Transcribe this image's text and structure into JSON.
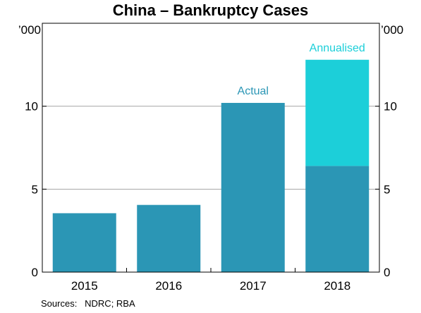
{
  "chart_data": {
    "type": "bar",
    "title": "China – Bankruptcy Cases",
    "categories": [
      "2015",
      "2016",
      "2017",
      "2018"
    ],
    "series": [
      {
        "name": "Actual",
        "values": [
          3.55,
          4.05,
          10.2,
          6.4
        ],
        "color": "#2b96b5"
      },
      {
        "name": "Annualised",
        "values": [
          0,
          0,
          0,
          6.4
        ],
        "color": "#1ccfd9"
      }
    ],
    "stacked": true,
    "ylim": [
      0,
      15
    ],
    "yticks": [
      0,
      5,
      10
    ],
    "left_unit": "’000",
    "right_unit": "’000",
    "annotations": [
      {
        "text": "Actual",
        "category": "2017",
        "color": "#2b96b5"
      },
      {
        "text": "Annualised",
        "category": "2018",
        "color": "#1ccfd9"
      }
    ],
    "grid": true,
    "source": "Sources:   NDRC; RBA"
  }
}
